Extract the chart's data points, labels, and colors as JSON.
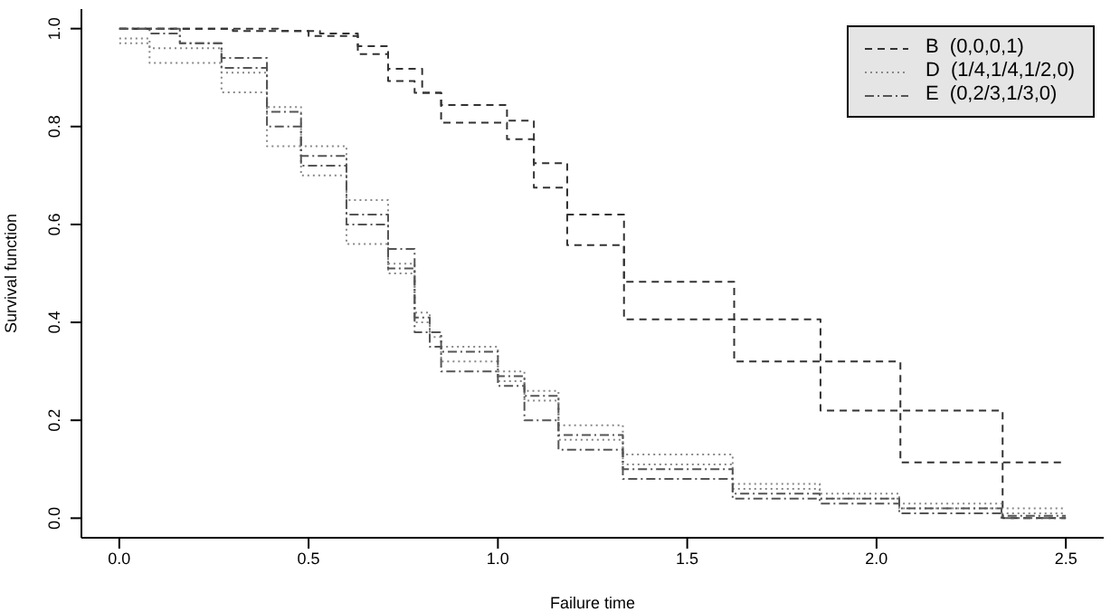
{
  "chart_data": {
    "type": "step",
    "xlabel": "Failure time",
    "ylabel": "Survival function",
    "xlim": [
      -0.1,
      2.6
    ],
    "ylim": [
      -0.04,
      1.04
    ],
    "xticks": [
      {
        "value": 0,
        "label": "0.0"
      },
      0.5,
      {
        "value": 1,
        "label": "1.0"
      },
      1.5,
      {
        "value": 2,
        "label": "2.0"
      },
      2.5
    ],
    "yticks": [
      {
        "value": 0,
        "label": "0.0"
      },
      0.2,
      0.4,
      0.6,
      0.8,
      {
        "value": 1,
        "label": "1.0"
      }
    ],
    "grid": false,
    "legend": "top right",
    "marker": "none",
    "series": [
      {
        "name": "B  (0,0,0,1)",
        "color": "#333333",
        "line_style": "dashed",
        "x": [
          0,
          0.42,
          0.53,
          0.63,
          0.71,
          0.8,
          0.85,
          1.024,
          1.095,
          1.183,
          1.333,
          1.624,
          2.063,
          2.5
        ],
        "values": [
          1,
          0.995,
          0.99,
          0.964,
          0.918,
          0.869,
          0.844,
          0.812,
          0.725,
          0.62,
          0.483,
          0.32,
          0.114,
          0.114
        ]
      },
      {
        "color": "#333333",
        "line_style": "dashed",
        "x": [
          0,
          0.3,
          0.5,
          0.63,
          0.71,
          0.78,
          0.85,
          1.024,
          1.095,
          1.183,
          1.333,
          1.852,
          2.333,
          2.5
        ],
        "values": [
          1,
          0.995,
          0.985,
          0.948,
          0.893,
          0.869,
          0.808,
          0.774,
          0.675,
          0.558,
          0.406,
          0.22,
          0,
          0
        ]
      },
      {
        "name": "D  (1/4,1/4,1/2,0)",
        "color": "#888888",
        "line_style": "dotted",
        "x": [
          0,
          0.08,
          0.16,
          0.27,
          0.39,
          0.48,
          0.6,
          0.71,
          0.78,
          0.82,
          0.85,
          1.0,
          1.07,
          1.16,
          1.33,
          1.62,
          1.85,
          2.06,
          2.33,
          2.5
        ],
        "values": [
          0.98,
          0.96,
          0.96,
          0.91,
          0.84,
          0.76,
          0.65,
          0.52,
          0.42,
          0.38,
          0.35,
          0.3,
          0.26,
          0.19,
          0.13,
          0.07,
          0.05,
          0.03,
          0.02,
          0.02
        ]
      },
      {
        "color": "#888888",
        "line_style": "dotted",
        "x": [
          0,
          0.08,
          0.16,
          0.27,
          0.39,
          0.48,
          0.6,
          0.71,
          0.78,
          0.82,
          0.85,
          1.0,
          1.07,
          1.16,
          1.33,
          1.62,
          1.85,
          2.06,
          2.33,
          2.5
        ],
        "values": [
          0.97,
          0.93,
          0.93,
          0.87,
          0.76,
          0.7,
          0.56,
          0.5,
          0.4,
          0.37,
          0.32,
          0.28,
          0.24,
          0.16,
          0.11,
          0.06,
          0.04,
          0.02,
          0.01,
          0.01
        ]
      },
      {
        "name": "E  (0,2/3,1/3,0)",
        "color": "#555555",
        "line_style": "dashdot",
        "x": [
          0,
          0.08,
          0.16,
          0.27,
          0.39,
          0.48,
          0.6,
          0.71,
          0.78,
          0.82,
          0.85,
          1.0,
          1.07,
          1.16,
          1.33,
          1.62,
          1.85,
          2.06,
          2.33,
          2.5
        ],
        "values": [
          1,
          1,
          0.97,
          0.94,
          0.83,
          0.74,
          0.62,
          0.55,
          0.41,
          0.38,
          0.34,
          0.29,
          0.25,
          0.17,
          0.1,
          0.05,
          0.04,
          0.02,
          0.005,
          0.005
        ]
      },
      {
        "color": "#555555",
        "line_style": "dashdot",
        "x": [
          0,
          0.08,
          0.16,
          0.27,
          0.39,
          0.48,
          0.6,
          0.71,
          0.78,
          0.82,
          0.85,
          1.0,
          1.07,
          1.16,
          1.33,
          1.62,
          1.85,
          2.06,
          2.33,
          2.5
        ],
        "values": [
          1,
          0.99,
          0.97,
          0.92,
          0.8,
          0.72,
          0.6,
          0.51,
          0.38,
          0.35,
          0.3,
          0.27,
          0.2,
          0.14,
          0.08,
          0.04,
          0.03,
          0.01,
          0,
          0
        ]
      }
    ]
  }
}
